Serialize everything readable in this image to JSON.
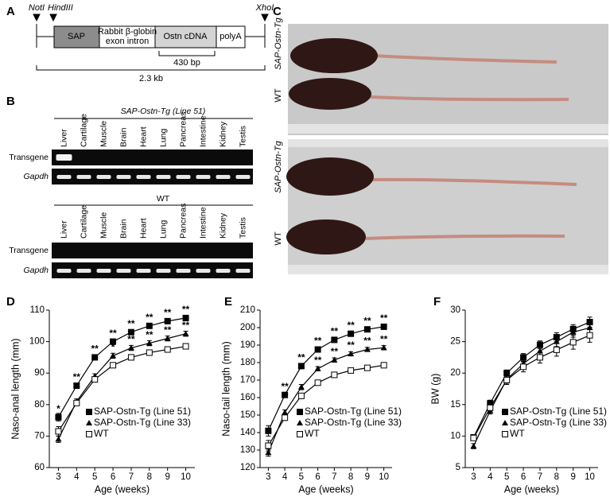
{
  "figure": {
    "panel_labels": [
      "A",
      "B",
      "C",
      "D",
      "E",
      "F"
    ],
    "construct": {
      "sites": [
        "NotI",
        "HindIII",
        "XhoI"
      ],
      "elements": [
        [
          "SAP"
        ],
        [
          "Rabbit β-globin",
          "exon intron"
        ],
        [
          "Ostn cDNA"
        ],
        [
          "polyA"
        ]
      ],
      "cdna_size": "430 bp",
      "total_size": "2.3 kb"
    },
    "gel": {
      "blocks": [
        {
          "title": "SAP-Ostn-Tg (Line 51)",
          "lanes": [
            "Liver",
            "Cartilage",
            "Muscle",
            "Brain",
            "Heart",
            "Lung",
            "Pancreas",
            "Intestine",
            "Kidney",
            "Testis"
          ],
          "rows": [
            "Transgene",
            "Gapdh"
          ]
        },
        {
          "title": "WT",
          "lanes": [
            "Liver",
            "Cartilage",
            "Muscle",
            "Brain",
            "Heart",
            "Lung",
            "Pancreas",
            "Intestine",
            "Kidney",
            "Testis"
          ],
          "rows": [
            "Transgene",
            "Gapdh"
          ]
        }
      ]
    },
    "photo": {
      "labels": [
        "SAP-Ostn-Tg",
        "WT",
        "SAP-Ostn-Tg",
        "WT"
      ]
    }
  },
  "chart_data": [
    {
      "type": "line",
      "x_label": "Age (weeks)",
      "y_label": "Naso-anal length (mm)",
      "x": [
        3,
        4,
        5,
        6,
        7,
        8,
        9,
        10
      ],
      "xlim": [
        2.5,
        10.5
      ],
      "xticks": [
        3,
        4,
        5,
        6,
        7,
        8,
        9,
        10
      ],
      "ylim": [
        60,
        110
      ],
      "yticks": [
        60,
        70,
        80,
        90,
        100,
        110
      ],
      "legend": "lower right",
      "series": [
        {
          "name": "SAP-Ostn-Tg (Line 51)",
          "color": "#000000",
          "marker": "square-filled",
          "values": [
            76,
            86,
            95,
            100,
            103,
            105,
            106.5,
            107.5
          ],
          "errors": [
            1.2,
            0.8,
            0.8,
            0.8,
            0.8,
            0.8,
            0.8,
            0.8
          ],
          "significance": [
            "*",
            "**",
            "**",
            "**",
            "**",
            "**",
            "**",
            "**"
          ]
        },
        {
          "name": "SAP-Ostn-Tg (Line 33)",
          "color": "#000000",
          "marker": "triangle",
          "values": [
            69,
            81,
            89,
            95.5,
            98,
            99.5,
            101,
            102.5
          ],
          "errors": [
            1,
            0.8,
            0.8,
            0.8,
            0.8,
            0.8,
            0.8,
            0.8
          ],
          "significance": [
            null,
            null,
            null,
            "*",
            "**",
            "**",
            "**",
            "**"
          ]
        },
        {
          "name": "WT",
          "color": "#000000",
          "marker": "square-open",
          "values": [
            71.5,
            80.5,
            88,
            92.5,
            95,
            96.5,
            97.5,
            98.5
          ],
          "errors": [
            1.5,
            0.8,
            0.8,
            0.8,
            0.8,
            0.8,
            0.8,
            0.8
          ],
          "significance": [
            null,
            null,
            null,
            null,
            null,
            null,
            null,
            null
          ]
        }
      ]
    },
    {
      "type": "line",
      "x_label": "Age (weeks)",
      "y_label": "Naso-tail length (mm)",
      "x": [
        3,
        4,
        5,
        6,
        7,
        8,
        9,
        10
      ],
      "xlim": [
        2.5,
        10.5
      ],
      "xticks": [
        3,
        4,
        5,
        6,
        7,
        8,
        9,
        10
      ],
      "ylim": [
        120,
        210
      ],
      "yticks": [
        120,
        130,
        140,
        150,
        160,
        170,
        180,
        190,
        200,
        210
      ],
      "legend": "lower right",
      "series": [
        {
          "name": "SAP-Ostn-Tg (Line 51)",
          "color": "#000000",
          "marker": "square-filled",
          "values": [
            141,
            161.5,
            178,
            187.5,
            193,
            196.5,
            199,
            200.5
          ],
          "errors": [
            3,
            1.5,
            1.2,
            1.2,
            1.2,
            1.2,
            1.2,
            1.2
          ],
          "significance": [
            null,
            "**",
            "**",
            "**",
            "**",
            "**",
            "**",
            "**"
          ]
        },
        {
          "name": "SAP-Ostn-Tg (Line 33)",
          "color": "#000000",
          "marker": "triangle",
          "values": [
            128.5,
            151.5,
            166,
            176.5,
            181.5,
            185,
            187.5,
            188.5
          ],
          "errors": [
            2,
            1.5,
            1.5,
            1.2,
            1.2,
            1.2,
            1.2,
            1.2
          ],
          "significance": [
            null,
            null,
            null,
            "**",
            "**",
            "**",
            "**",
            "**"
          ]
        },
        {
          "name": "WT",
          "color": "#000000",
          "marker": "square-open",
          "values": [
            132.5,
            148.5,
            161,
            168.5,
            173,
            175.5,
            177,
            178.5
          ],
          "errors": [
            3,
            1.5,
            1.5,
            1.2,
            1.2,
            1.2,
            1.2,
            1.2
          ],
          "significance": [
            null,
            null,
            null,
            null,
            null,
            null,
            null,
            null
          ]
        }
      ]
    },
    {
      "type": "line",
      "x_label": "Age (weeks)",
      "y_label": "BW (g)",
      "x": [
        3,
        4,
        5,
        6,
        7,
        8,
        9,
        10
      ],
      "xlim": [
        2.5,
        10.5
      ],
      "xticks": [
        3,
        4,
        5,
        6,
        7,
        8,
        9,
        10
      ],
      "ylim": [
        5,
        30
      ],
      "yticks": [
        5,
        10,
        15,
        20,
        25,
        30
      ],
      "legend": "lower right",
      "series": [
        {
          "name": "SAP-Ostn-Tg (Line 51)",
          "color": "#000000",
          "marker": "square-filled",
          "values": [
            9.8,
            15.2,
            20,
            22.5,
            24.5,
            25.7,
            27,
            28.1
          ],
          "errors": [
            0.4,
            0.5,
            0.5,
            0.6,
            0.6,
            0.7,
            0.7,
            0.8
          ]
        },
        {
          "name": "SAP-Ostn-Tg (Line 33)",
          "color": "#000000",
          "marker": "triangle",
          "values": [
            8.4,
            14,
            19,
            21.5,
            23.5,
            25,
            26.5,
            27.2
          ],
          "errors": [
            0.4,
            0.5,
            0.6,
            0.6,
            0.7,
            0.8,
            0.8,
            0.9
          ]
        },
        {
          "name": "WT",
          "color": "#000000",
          "marker": "square-open",
          "values": [
            9.7,
            14.5,
            18.9,
            21,
            22.5,
            23.7,
            24.9,
            26
          ],
          "errors": [
            0.4,
            0.5,
            0.7,
            0.8,
            0.9,
            1,
            1.1,
            1.1
          ]
        }
      ]
    }
  ]
}
